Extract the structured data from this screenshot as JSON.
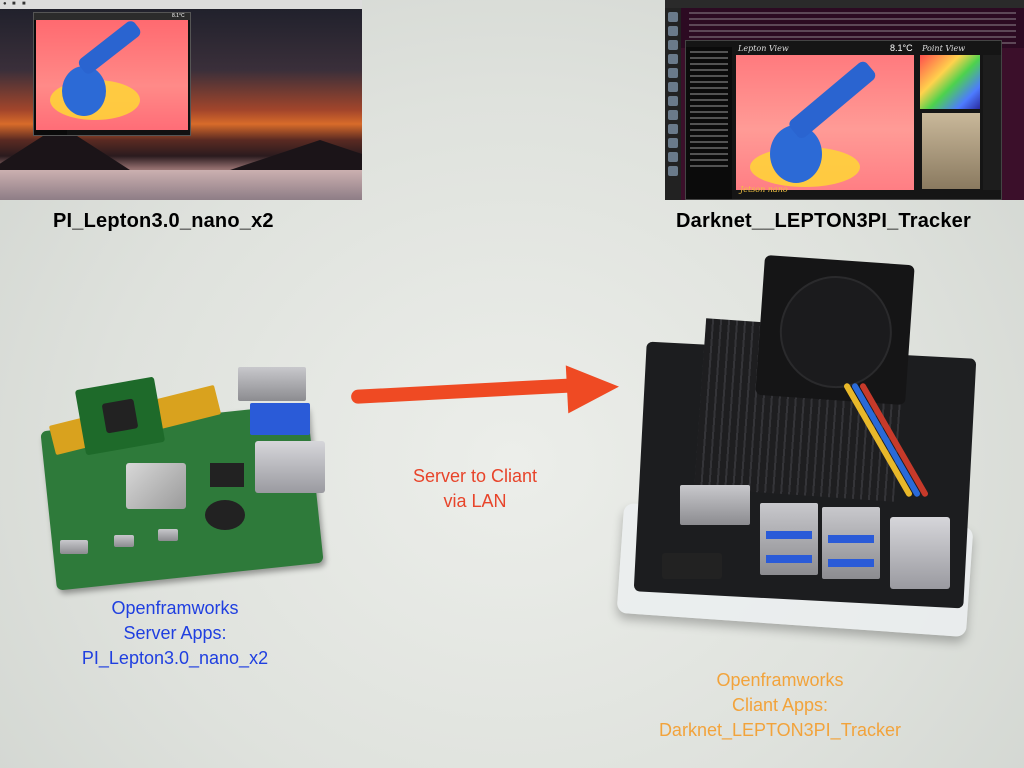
{
  "captions": {
    "left_screenshot": "PI_Lepton3.0_nano_x2",
    "right_screenshot": "Darknet__LEPTON3PI_Tracker",
    "arrow": [
      "Server to Cliant",
      "via LAN"
    ],
    "server": [
      "Openframworks",
      "Server Apps:",
      "PI_Lepton3.0_nano_x2"
    ],
    "client": [
      "Openframworks",
      "Cliant Apps:",
      "Darknet_LEPTON3PI_Tracker"
    ]
  },
  "right_app": {
    "lepton_view_title": "Lepton View",
    "point_view_title": "Point View",
    "temperature": "8.1°C",
    "footer_label": "Jetson nano"
  },
  "left_app": {
    "temperature": "8.1°C"
  },
  "colors": {
    "server_text": "#1f3fe0",
    "client_text": "#f2a33b",
    "arrow": "#ef4a23"
  }
}
